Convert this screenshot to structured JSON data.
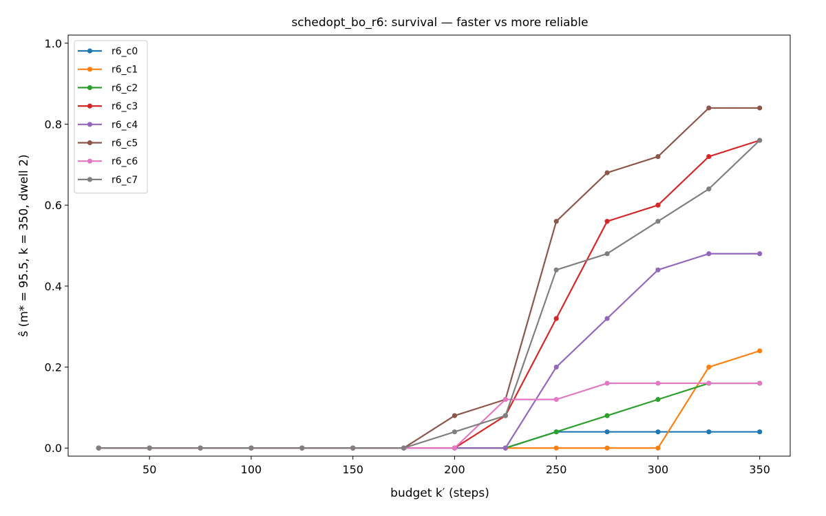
{
  "chart_data": {
    "type": "line",
    "title": "schedopt_bo_r6: survival — faster vs more reliable",
    "xlabel": "budget k′ (steps)",
    "ylabel": "ŝ (m* = 95.5, k = 350, dwell 2)",
    "xlim": [
      10,
      365
    ],
    "ylim": [
      -0.02,
      1.02
    ],
    "xticks": [
      50,
      100,
      150,
      200,
      250,
      300,
      350
    ],
    "yticks": [
      0.0,
      0.2,
      0.4,
      0.6,
      0.8,
      1.0
    ],
    "grid": false,
    "legend_position": "top-left",
    "x": [
      25,
      50,
      75,
      100,
      125,
      150,
      175,
      200,
      225,
      250,
      275,
      300,
      325,
      350
    ],
    "series": [
      {
        "name": "r6_c0",
        "color": "#1f77b4",
        "values": [
          0,
          0,
          0,
          0,
          0,
          0,
          0,
          0,
          0,
          0.04,
          0.04,
          0.04,
          0.04,
          0.04
        ]
      },
      {
        "name": "r6_c1",
        "color": "#ff7f0e",
        "values": [
          0,
          0,
          0,
          0,
          0,
          0,
          0,
          0,
          0,
          0,
          0,
          0,
          0.2,
          0.24
        ]
      },
      {
        "name": "r6_c2",
        "color": "#2ca02c",
        "values": [
          0,
          0,
          0,
          0,
          0,
          0,
          0,
          0,
          0,
          0.04,
          0.08,
          0.12,
          0.16,
          0.16
        ]
      },
      {
        "name": "r6_c3",
        "color": "#d62728",
        "values": [
          0,
          0,
          0,
          0,
          0,
          0,
          0,
          0,
          0.08,
          0.32,
          0.56,
          0.6,
          0.72,
          0.76
        ]
      },
      {
        "name": "r6_c4",
        "color": "#9467bd",
        "values": [
          0,
          0,
          0,
          0,
          0,
          0,
          0,
          0,
          0,
          0.2,
          0.32,
          0.44,
          0.48,
          0.48
        ]
      },
      {
        "name": "r6_c5",
        "color": "#8c564b",
        "values": [
          0,
          0,
          0,
          0,
          0,
          0,
          0,
          0.08,
          0.12,
          0.56,
          0.68,
          0.72,
          0.84,
          0.84
        ]
      },
      {
        "name": "r6_c6",
        "color": "#e377c2",
        "values": [
          0,
          0,
          0,
          0,
          0,
          0,
          0,
          0,
          0.12,
          0.12,
          0.16,
          0.16,
          0.16,
          0.16
        ]
      },
      {
        "name": "r6_c7",
        "color": "#7f7f7f",
        "values": [
          0,
          0,
          0,
          0,
          0,
          0,
          0,
          0.04,
          0.08,
          0.44,
          0.48,
          0.56,
          0.64,
          0.76
        ]
      }
    ]
  }
}
